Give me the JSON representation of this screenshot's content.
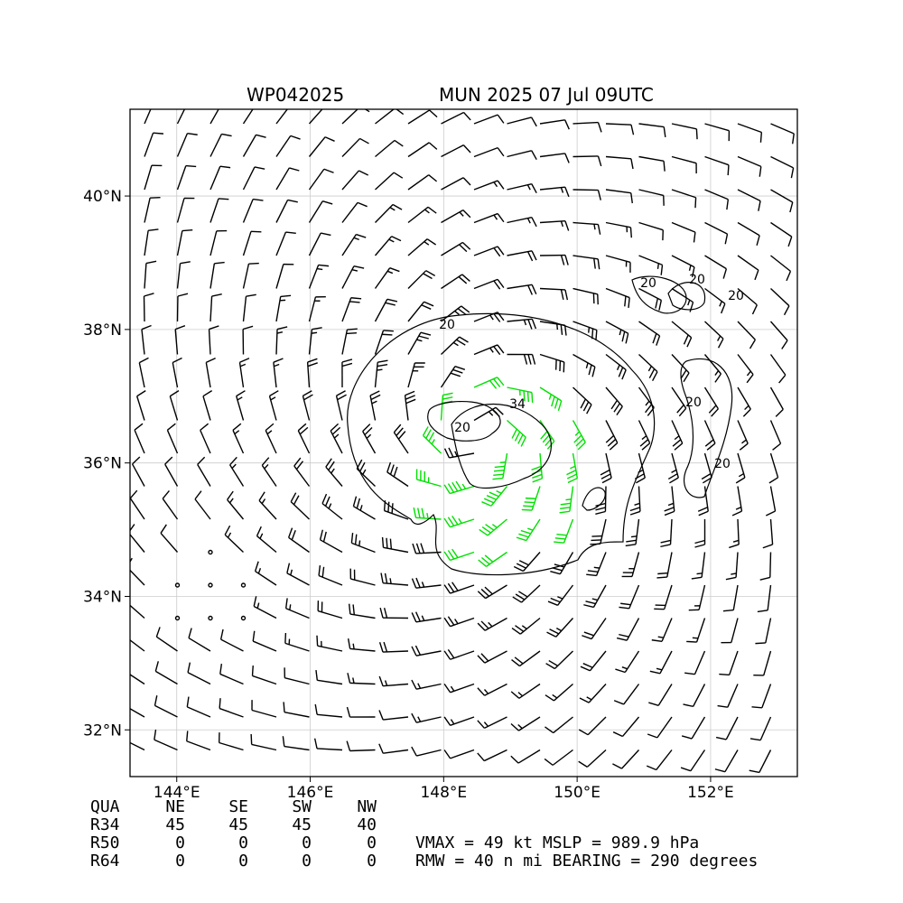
{
  "header": {
    "storm_id": "WP042025",
    "run_label": "MUN 2025 07 Jul 09UTC"
  },
  "map": {
    "lon_range": [
      143.3,
      153.3
    ],
    "lat_range": [
      31.3,
      41.3
    ],
    "lon_ticks": [
      "144°E",
      "146°E",
      "148°E",
      "150°E",
      "152°E"
    ],
    "lon_tick_values": [
      144,
      146,
      148,
      150,
      152
    ],
    "lat_ticks": [
      "32°N",
      "34°N",
      "36°N",
      "38°N",
      "40°N"
    ],
    "lat_tick_values": [
      32,
      34,
      36,
      38,
      40
    ],
    "grid": true,
    "storm_center": {
      "lon": 148.5,
      "lat": 36.4
    },
    "contour_labels": [
      "20",
      "20",
      "20",
      "20",
      "20",
      "20",
      "20",
      "34"
    ],
    "colors": {
      "barb_default": "#000000",
      "barb_34kt": "#00e000",
      "barb_50kt": "#e8a800",
      "contour": "#000000",
      "grid": "#cccccc"
    }
  },
  "wind_radii": {
    "headers": [
      "QUA",
      "NE",
      "SE",
      "SW",
      "NW"
    ],
    "rows": [
      {
        "label": "R34",
        "values": [
          "45",
          "45",
          "45",
          "40"
        ]
      },
      {
        "label": "R50",
        "values": [
          "0",
          "0",
          "0",
          "0"
        ]
      },
      {
        "label": "R64",
        "values": [
          "0",
          "0",
          "0",
          "0"
        ]
      }
    ]
  },
  "stats": {
    "line1": "VMAX =  49 kt MSLP = 989.9 hPa",
    "line2": "RMW =  40 n mi BEARING = 290 degrees"
  }
}
